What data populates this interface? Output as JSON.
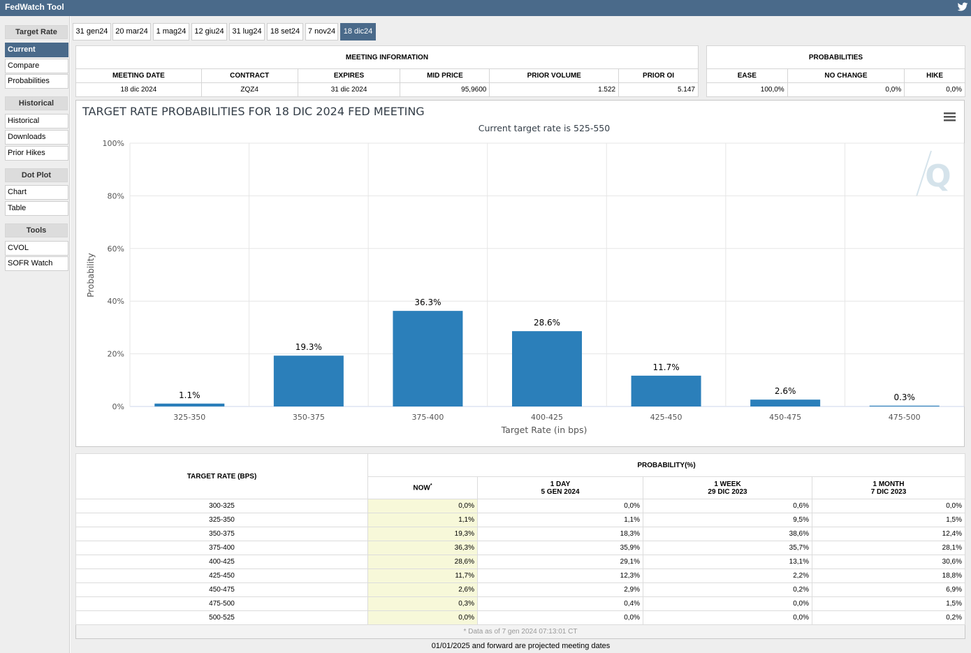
{
  "app": {
    "title": "FedWatch Tool"
  },
  "sidebar": {
    "groups": [
      {
        "heading": "Target Rate",
        "items": [
          "Current",
          "Compare",
          "Probabilities"
        ]
      },
      {
        "heading": "Historical",
        "items": [
          "Historical",
          "Downloads",
          "Prior Hikes"
        ]
      },
      {
        "heading": "Dot Plot",
        "items": [
          "Chart",
          "Table"
        ]
      },
      {
        "heading": "Tools",
        "items": [
          "CVOL",
          "SOFR Watch"
        ]
      }
    ],
    "active_item": "Current"
  },
  "tabs": {
    "items": [
      "31 gen24",
      "20 mar24",
      "1 mag24",
      "12 giu24",
      "31 lug24",
      "18 set24",
      "7 nov24",
      "18 dic24"
    ],
    "active": "18 dic24"
  },
  "meeting_info": {
    "header": "MEETING INFORMATION",
    "columns": [
      "MEETING DATE",
      "CONTRACT",
      "EXPIRES",
      "MID PRICE",
      "PRIOR VOLUME",
      "PRIOR OI"
    ],
    "values": [
      "18 dic 2024",
      "ZQZ4",
      "31 dic 2024",
      "95,9600",
      "1.522",
      "5.147"
    ]
  },
  "probabilities": {
    "header": "PROBABILITIES",
    "columns": [
      "EASE",
      "NO CHANGE",
      "HIKE"
    ],
    "values": [
      "100,0%",
      "0,0%",
      "0,0%"
    ]
  },
  "chart": {
    "menu_icon": "hamburger-menu-icon",
    "watermark": "Q"
  },
  "chart_data": {
    "type": "bar",
    "title": "TARGET RATE PROBABILITIES FOR 18 DIC 2024 FED MEETING",
    "subtitle": "Current target rate is 525-550",
    "xlabel": "Target Rate (in bps)",
    "ylabel": "Probability",
    "categories": [
      "325-350",
      "350-375",
      "375-400",
      "400-425",
      "425-450",
      "450-475",
      "475-500"
    ],
    "values": [
      1.1,
      19.3,
      36.3,
      28.6,
      11.7,
      2.6,
      0.3
    ],
    "data_labels": [
      "1.1%",
      "19.3%",
      "36.3%",
      "28.6%",
      "11.7%",
      "2.6%",
      "0.3%"
    ],
    "ylim": [
      0,
      100
    ],
    "yticks": [
      "0%",
      "20%",
      "40%",
      "60%",
      "80%",
      "100%"
    ],
    "grid": true,
    "bar_color": "#2b7fba"
  },
  "prob_table": {
    "rate_header": "TARGET RATE (BPS)",
    "group_header": "PROBABILITY(%)",
    "columns": [
      {
        "line1": "NOW",
        "line2": "",
        "sup": "*"
      },
      {
        "line1": "1 DAY",
        "line2": "5 GEN 2024",
        "sup": ""
      },
      {
        "line1": "1 WEEK",
        "line2": "29 DIC 2023",
        "sup": ""
      },
      {
        "line1": "1 MONTH",
        "line2": "7 DIC 2023",
        "sup": ""
      }
    ],
    "rows": [
      {
        "rate": "300-325",
        "values": [
          "0,0%",
          "0,0%",
          "0,6%",
          "0,0%"
        ]
      },
      {
        "rate": "325-350",
        "values": [
          "1,1%",
          "1,1%",
          "9,5%",
          "1,5%"
        ]
      },
      {
        "rate": "350-375",
        "values": [
          "19,3%",
          "18,3%",
          "38,6%",
          "12,4%"
        ]
      },
      {
        "rate": "375-400",
        "values": [
          "36,3%",
          "35,9%",
          "35,7%",
          "28,1%"
        ]
      },
      {
        "rate": "400-425",
        "values": [
          "28,6%",
          "29,1%",
          "13,1%",
          "30,6%"
        ]
      },
      {
        "rate": "425-450",
        "values": [
          "11,7%",
          "12,3%",
          "2,2%",
          "18,8%"
        ]
      },
      {
        "rate": "450-475",
        "values": [
          "2,6%",
          "2,9%",
          "0,2%",
          "6,9%"
        ]
      },
      {
        "rate": "475-500",
        "values": [
          "0,3%",
          "0,4%",
          "0,0%",
          "1,5%"
        ]
      },
      {
        "rate": "500-525",
        "values": [
          "0,0%",
          "0,0%",
          "0,0%",
          "0,2%"
        ]
      }
    ],
    "data_note": "* Data as of 7 gen 2024 07:13:01 CT"
  },
  "footer": {
    "note": "01/01/2025 and forward are projected meeting dates"
  },
  "colors": {
    "header_bg": "#4a6a8a",
    "now_col_bg": "#f7f8d9",
    "bar": "#2b7fba"
  }
}
